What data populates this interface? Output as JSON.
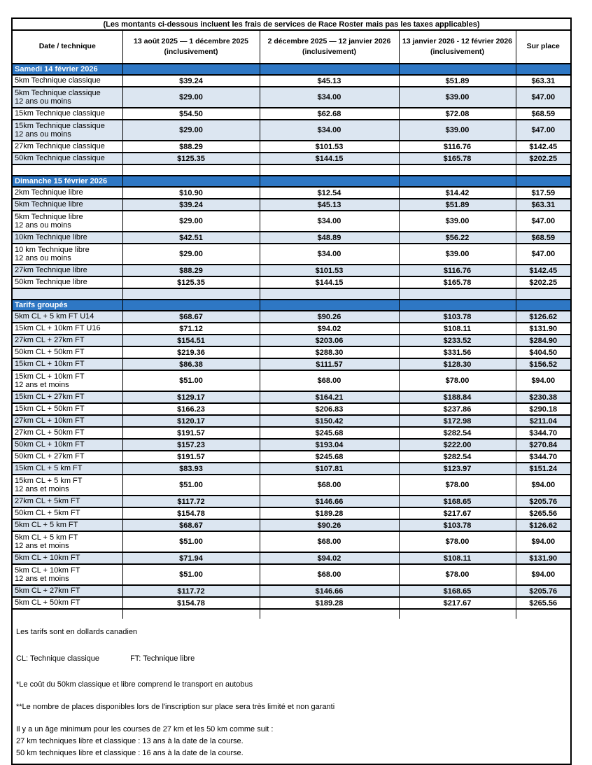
{
  "colors": {
    "section_header_bg": "#2E77C4",
    "row_stripe_blue": "#DCE6F1",
    "grid_line": "#000000",
    "section_header_text": "#FFFFFF"
  },
  "table": {
    "title_note": "(Les montants ci-dessous incluent les frais de services de Race Roster mais pas les taxes applicables)",
    "columns": [
      {
        "label": "Date / technique",
        "sub": ""
      },
      {
        "label": "13 août 2025 — 1 décembre 2025",
        "sub": "(inclusivement)"
      },
      {
        "label": "2 décembre 2025 — 12 janvier 2026",
        "sub": "(inclusivement)"
      },
      {
        "label": "13 janvier 2026 - 12 février 2026",
        "sub": "(inclusivement)"
      },
      {
        "label": "Sur place",
        "sub": ""
      }
    ],
    "sections": [
      {
        "header": "Samedi 14 février 2026",
        "spacer_after": "white",
        "rows": [
          {
            "label": "5km Technique classique",
            "sublabel": "",
            "shade": "white",
            "prices": [
              "$39.24",
              "$45.13",
              "$51.89",
              "$63.31"
            ]
          },
          {
            "label": "5km Technique classique",
            "sublabel": "12 ans ou moins",
            "shade": "blue",
            "prices": [
              "$29.00",
              "$34.00",
              "$39.00",
              "$47.00"
            ]
          },
          {
            "label": "15km Technique classique",
            "sublabel": "",
            "shade": "white",
            "prices": [
              "$54.50",
              "$62.68",
              "$72.08",
              "$68.59"
            ]
          },
          {
            "label": "15km Technique classique",
            "sublabel": "12 ans ou moins",
            "shade": "blue",
            "prices": [
              "$29.00",
              "$34.00",
              "$39.00",
              "$47.00"
            ]
          },
          {
            "label": "27km Technique classique",
            "sublabel": "",
            "shade": "white",
            "prices": [
              "$88.29",
              "$101.53",
              "$116.76",
              "$142.45"
            ]
          },
          {
            "label": "50km Technique classique",
            "sublabel": "",
            "shade": "blue",
            "prices": [
              "$125.35",
              "$144.15",
              "$165.78",
              "$202.25"
            ]
          }
        ]
      },
      {
        "header": "Dimanche 15 février 2026",
        "spacer_after": "blue",
        "rows": [
          {
            "label": "2km Technique libre",
            "sublabel": "",
            "shade": "white",
            "prices": [
              "$10.90",
              "$12.54",
              "$14.42",
              "$17.59"
            ]
          },
          {
            "label": "5km Technique libre",
            "sublabel": "",
            "shade": "blue",
            "prices": [
              "$39.24",
              "$45.13",
              "$51.89",
              "$63.31"
            ]
          },
          {
            "label": "5km Technique libre",
            "sublabel": "12 ans ou moins",
            "shade": "white",
            "prices": [
              "$29.00",
              "$34.00",
              "$39.00",
              "$47.00"
            ]
          },
          {
            "label": "10km Technique libre",
            "sublabel": "",
            "shade": "blue",
            "prices": [
              "$42.51",
              "$48.89",
              "$56.22",
              "$68.59"
            ]
          },
          {
            "label": "10 km Technique libre",
            "sublabel": "12 ans ou moins",
            "shade": "white",
            "prices": [
              "$29.00",
              "$34.00",
              "$39.00",
              "$47.00"
            ]
          },
          {
            "label": "27km Technique libre",
            "sublabel": "",
            "shade": "blue",
            "prices": [
              "$88.29",
              "$101.53",
              "$116.76",
              "$142.45"
            ]
          },
          {
            "label": "50km Technique libre",
            "sublabel": "",
            "shade": "white",
            "prices": [
              "$125.35",
              "$144.15",
              "$165.78",
              "$202.25"
            ]
          }
        ]
      },
      {
        "header": "Tarifs groupés",
        "spacer_after": "end",
        "rows": [
          {
            "label": "5km CL + 5 km FT U14",
            "sublabel": "",
            "shade": "blue",
            "prices": [
              "$68.67",
              "$90.26",
              "$103.78",
              "$126.62"
            ]
          },
          {
            "label": "15km CL + 10km FT U16",
            "sublabel": "",
            "shade": "white",
            "prices": [
              "$71.12",
              "$94.02",
              "$108.11",
              "$131.90"
            ]
          },
          {
            "label": "27km CL + 27km FT",
            "sublabel": "",
            "shade": "blue",
            "prices": [
              "$154.51",
              "$203.06",
              "$233.52",
              "$284.90"
            ]
          },
          {
            "label": "50km CL + 50km FT",
            "sublabel": "",
            "shade": "white",
            "prices": [
              "$219.36",
              "$288.30",
              "$331.56",
              "$404.50"
            ]
          },
          {
            "label": "15km CL + 10km FT",
            "sublabel": "",
            "shade": "blue",
            "prices": [
              "$86.38",
              "$111.57",
              "$128.30",
              "$156.52"
            ]
          },
          {
            "label": "15km CL + 10km FT",
            "sublabel": "12 ans et moins",
            "shade": "white",
            "prices": [
              "$51.00",
              "$68.00",
              "$78.00",
              "$94.00"
            ]
          },
          {
            "label": "15km CL + 27km FT",
            "sublabel": "",
            "shade": "blue",
            "prices": [
              "$129.17",
              "$164.21",
              "$188.84",
              "$230.38"
            ]
          },
          {
            "label": "15km CL + 50km FT",
            "sublabel": "",
            "shade": "white",
            "prices": [
              "$166.23",
              "$206.83",
              "$237.86",
              "$290.18"
            ]
          },
          {
            "label": "27km CL + 10km FT",
            "sublabel": "",
            "shade": "blue",
            "prices": [
              "$120.17",
              "$150.42",
              "$172.98",
              "$211.04"
            ]
          },
          {
            "label": "27km CL + 50km FT",
            "sublabel": "",
            "shade": "white",
            "prices": [
              "$191.57",
              "$245.68",
              "$282.54",
              "$344.70"
            ]
          },
          {
            "label": "50km CL + 10km FT",
            "sublabel": "",
            "shade": "blue",
            "prices": [
              "$157.23",
              "$193.04",
              "$222.00",
              "$270.84"
            ]
          },
          {
            "label": "50km CL + 27km FT",
            "sublabel": "",
            "shade": "white",
            "prices": [
              "$191.57",
              "$245.68",
              "$282.54",
              "$344.70"
            ]
          },
          {
            "label": "15km CL + 5 km FT",
            "sublabel": "",
            "shade": "blue",
            "prices": [
              "$83.93",
              "$107.81",
              "$123.97",
              "$151.24"
            ]
          },
          {
            "label": "15km CL + 5 km FT",
            "sublabel": "12 ans et moins",
            "shade": "white",
            "prices": [
              "$51.00",
              "$68.00",
              "$78.00",
              "$94.00"
            ]
          },
          {
            "label": "27km CL + 5km FT",
            "sublabel": "",
            "shade": "blue",
            "prices": [
              "$117.72",
              "$146.66",
              "$168.65",
              "$205.76"
            ]
          },
          {
            "label": "50km CL + 5km FT",
            "sublabel": "",
            "shade": "white",
            "prices": [
              "$154.78",
              "$189.28",
              "$217.67",
              "$265.56"
            ]
          },
          {
            "label": "5km CL + 5 km FT",
            "sublabel": "",
            "shade": "blue",
            "prices": [
              "$68.67",
              "$90.26",
              "$103.78",
              "$126.62"
            ]
          },
          {
            "label": " 5km CL + 5 km FT",
            "sublabel": "12 ans et moins",
            "shade": "white",
            "prices": [
              "$51.00",
              "$68.00",
              "$78.00",
              "$94.00"
            ]
          },
          {
            "label": "5km CL + 10km FT",
            "sublabel": "",
            "shade": "blue",
            "prices": [
              "$71.94",
              "$94.02",
              "$108.11",
              "$131.90"
            ]
          },
          {
            "label": " 5km CL + 10km FT",
            "sublabel": "12 ans et moins",
            "shade": "white",
            "prices": [
              "$51.00",
              "$68.00",
              "$78.00",
              "$94.00"
            ]
          },
          {
            "label": "5km CL + 27km FT",
            "sublabel": "",
            "shade": "blue",
            "prices": [
              "$117.72",
              "$146.66",
              "$168.65",
              "$205.76"
            ]
          },
          {
            "label": "5km CL + 50km FT",
            "sublabel": "",
            "shade": "white",
            "prices": [
              "$154.78",
              "$189.28",
              "$217.67",
              "$265.56"
            ]
          }
        ]
      }
    ]
  },
  "footer": {
    "currency_note": "Les tarifs sont en dollards canadien",
    "legend_cl": "CL: Technique classique",
    "legend_ft": "FT: Technique libre",
    "note_bus": "*Le coût du 50km classique et libre comprend le transport en autobus",
    "note_onsite": "**Le nombre de places disponibles lors de l'inscription sur place sera très limité et non garanti",
    "age_intro": "Il y a un âge minimum pour les courses de 27 km et les 50 km comme suit :",
    "age_27": "27 km techniques libre et classique : 13 ans à la date de la course.",
    "age_50": "50 km techniques libre et classique : 16 ans à la date de la course."
  }
}
